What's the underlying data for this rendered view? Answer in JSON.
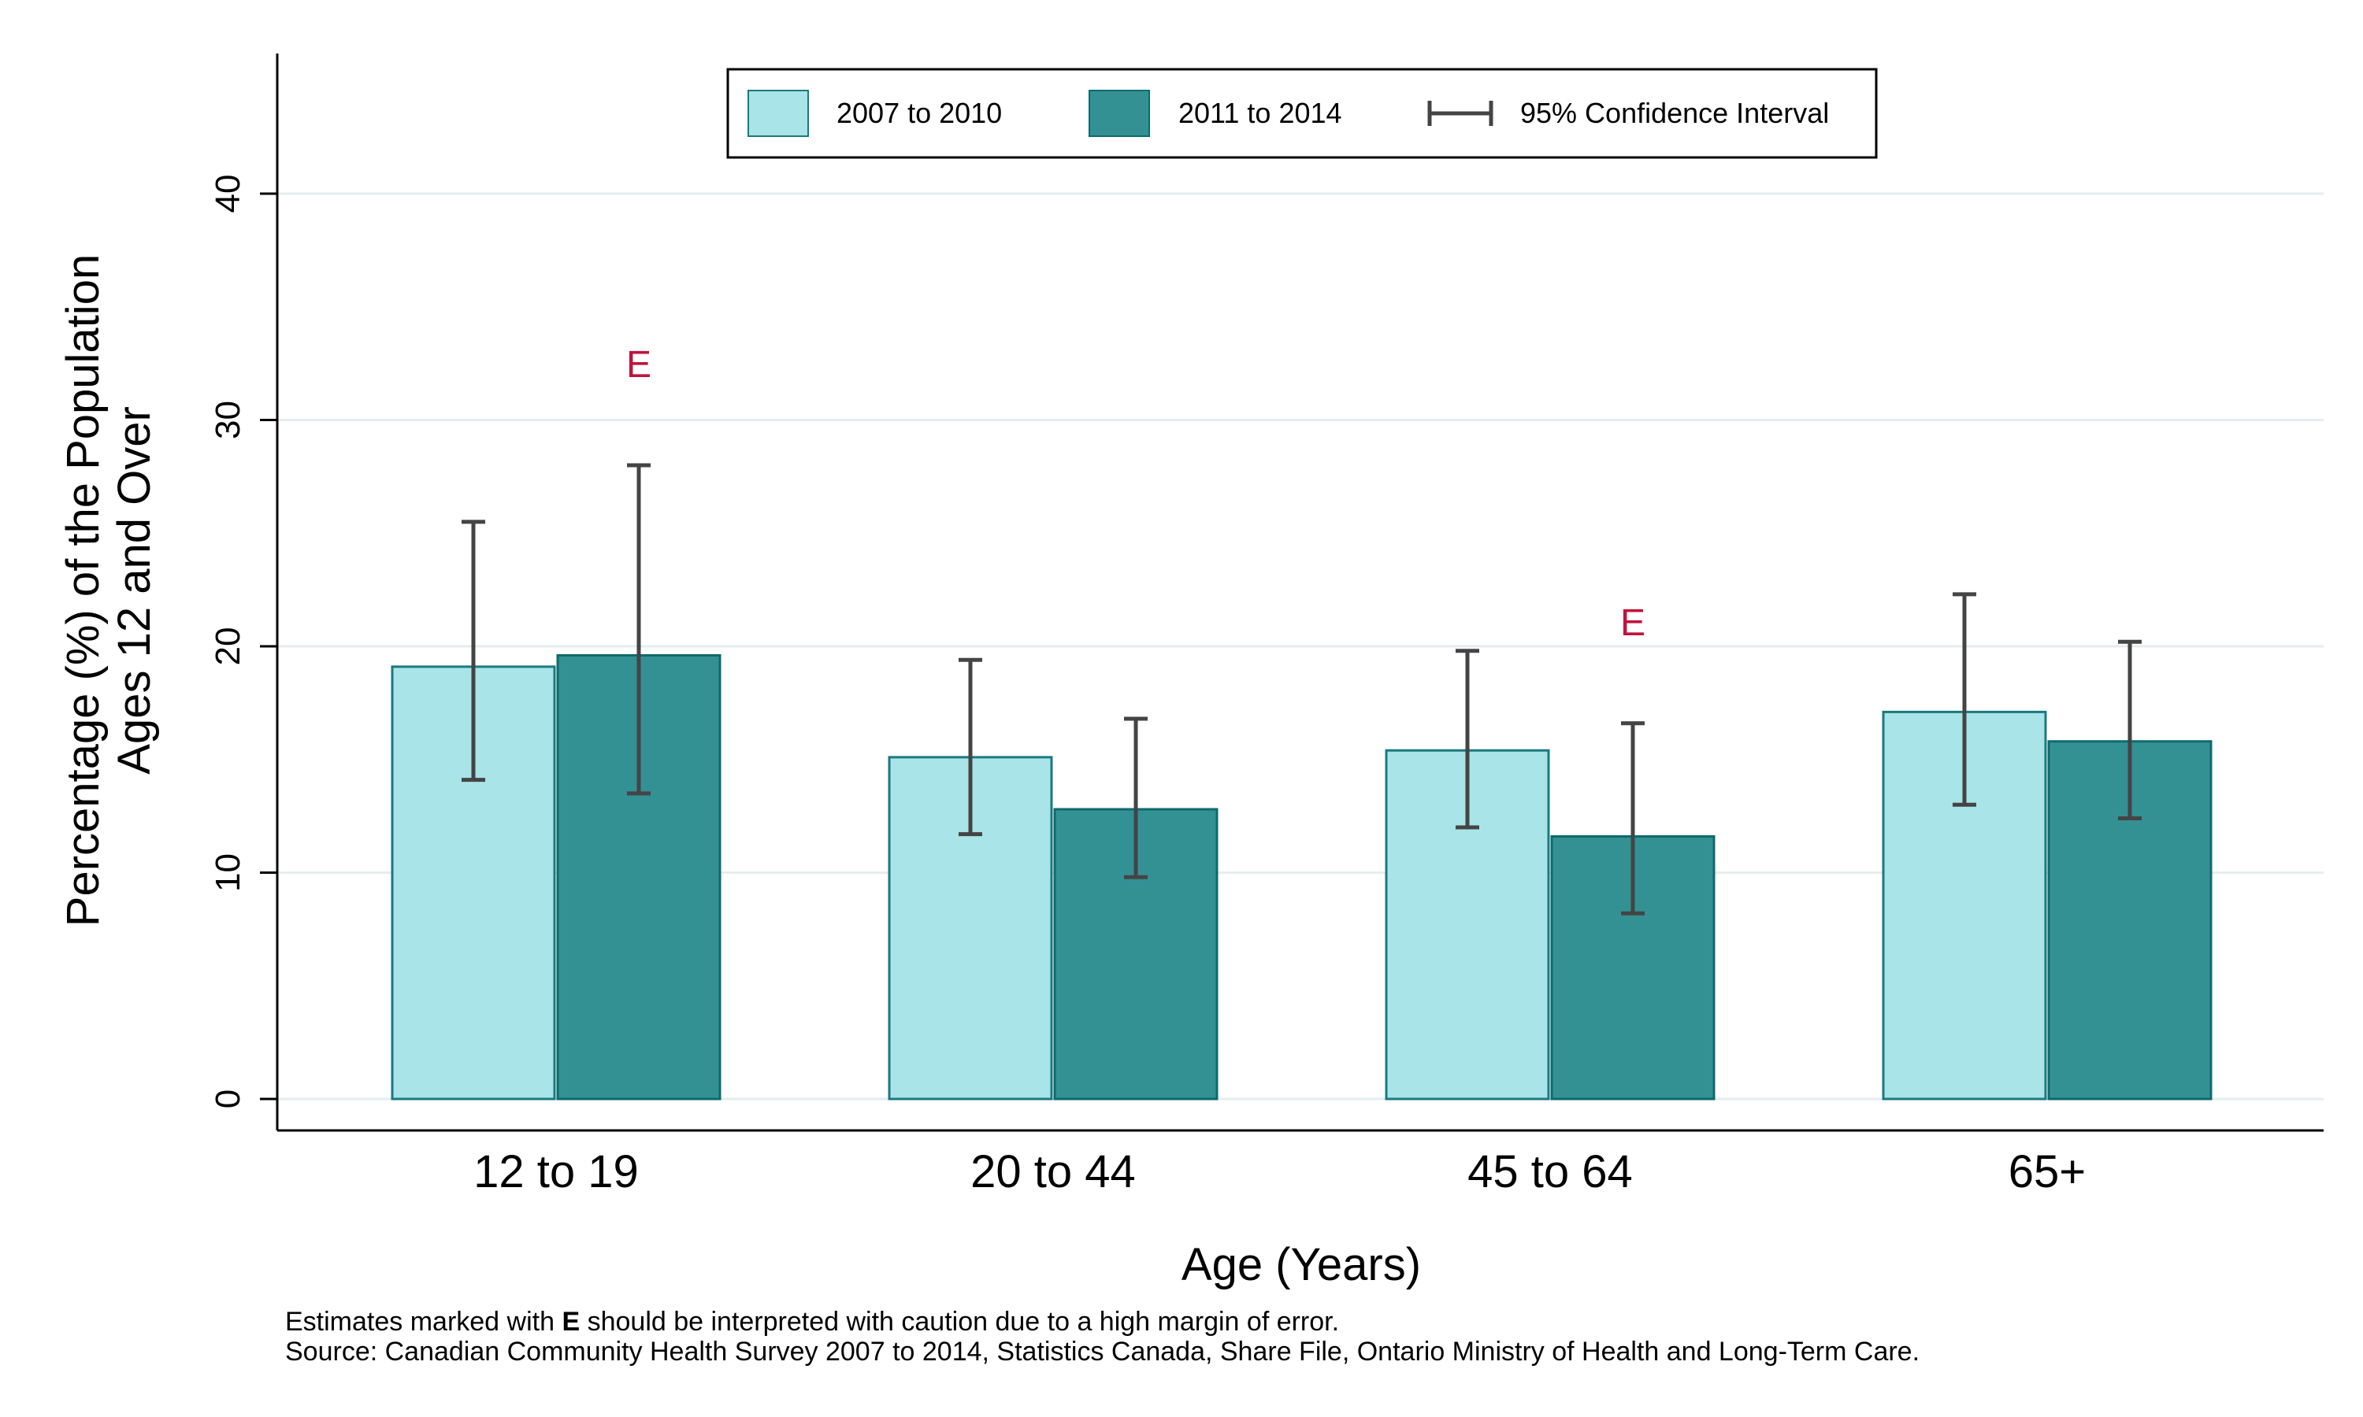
{
  "chart_data": {
    "type": "bar",
    "xlabel": "Age (Years)",
    "ylabel_lines": [
      "Percentage (%) of the Population",
      "Ages 12 and Over"
    ],
    "categories": [
      "12 to 19",
      "20 to 44",
      "45 to 64",
      "65+"
    ],
    "ylim": [
      0,
      46
    ],
    "yticks": [
      0,
      10,
      20,
      30,
      40
    ],
    "grid": true,
    "legend_position": "top-center",
    "ci_legend_label": "95% Confidence Interval",
    "flag_marker": "E",
    "series": [
      {
        "name": "2007 to 2010",
        "color": "#a8e4e8",
        "values": [
          19.1,
          15.1,
          15.4,
          17.1
        ],
        "ci_low": [
          14.1,
          11.7,
          12.0,
          13.0
        ],
        "ci_high": [
          25.5,
          19.4,
          19.8,
          22.3
        ],
        "flagged": [
          false,
          false,
          false,
          false
        ]
      },
      {
        "name": "2011 to 2014",
        "color": "#339194",
        "values": [
          19.6,
          12.8,
          11.6,
          15.8
        ],
        "ci_low": [
          13.5,
          9.8,
          8.2,
          12.4
        ],
        "ci_high": [
          28.0,
          16.8,
          16.6,
          20.2
        ],
        "flagged": [
          true,
          false,
          true,
          false
        ]
      }
    ]
  },
  "footnote": {
    "line1_prefix": "Estimates marked with ",
    "line1_flag": "E",
    "line1_suffix": " should be interpreted with caution due to a high margin of error.",
    "line2": "Source: Canadian Community Health Survey 2007 to 2014, Statistics Canada, Share File, Ontario Ministry of Health and Long-Term Care."
  }
}
